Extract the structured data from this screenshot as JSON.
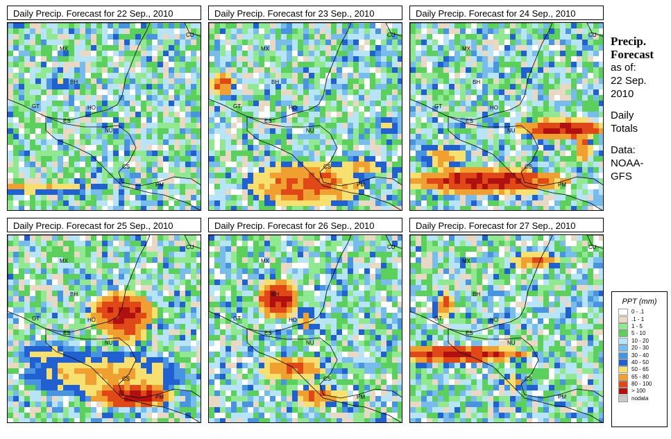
{
  "panels": [
    {
      "title": "Daily Precip. Forecast for  22 Sep., 2010",
      "seed": 1,
      "blobs": [
        [
          40,
          270,
          120,
          8,
          9
        ],
        [
          320,
          230,
          40,
          6,
          7
        ],
        [
          85,
          120,
          25,
          8,
          8
        ]
      ]
    },
    {
      "title": "Daily Precip. Forecast for  23 Sep., 2010",
      "seed": 2,
      "blobs": [
        [
          440,
          265,
          90,
          35,
          10
        ],
        [
          520,
          240,
          40,
          15,
          9
        ],
        [
          320,
          120,
          20,
          20,
          10
        ],
        [
          560,
          180,
          20,
          15,
          8
        ]
      ]
    },
    {
      "title": "Daily Precip. Forecast for  24 Sep., 2010",
      "seed": 3,
      "blobs": [
        [
          700,
          260,
          120,
          20,
          11
        ],
        [
          810,
          185,
          70,
          15,
          11
        ],
        [
          840,
          210,
          12,
          25,
          10
        ],
        [
          640,
          225,
          40,
          20,
          9
        ]
      ]
    },
    {
      "title": "Daily Precip. Forecast for  25 Sep., 2010",
      "seed": 4,
      "blobs": [
        [
          175,
          450,
          50,
          30,
          11
        ],
        [
          180,
          470,
          35,
          30,
          10
        ],
        [
          150,
          540,
          120,
          35,
          9
        ],
        [
          190,
          570,
          60,
          20,
          11
        ],
        [
          70,
          510,
          50,
          20,
          8
        ]
      ]
    },
    {
      "title": "Daily Precip. Forecast for  26 Sep., 2010",
      "seed": 5,
      "blobs": [
        [
          400,
          430,
          30,
          30,
          11
        ],
        [
          420,
          530,
          50,
          20,
          10
        ],
        [
          460,
          570,
          40,
          15,
          10
        ],
        [
          440,
          460,
          15,
          20,
          9
        ]
      ]
    },
    {
      "title": "Daily Precip. Forecast for  27 Sep., 2010",
      "seed": 6,
      "blobs": [
        [
          660,
          510,
          110,
          12,
          11
        ],
        [
          770,
          375,
          40,
          12,
          10
        ],
        [
          640,
          440,
          15,
          20,
          10
        ],
        [
          740,
          550,
          15,
          15,
          9
        ]
      ]
    }
  ],
  "map_labels": [
    "MX",
    "BH",
    "GT",
    "HO",
    "ES",
    "NU",
    "CS",
    "PM",
    "CU"
  ],
  "side": {
    "heading_line1": "Precip.",
    "heading_line2": "Forecast",
    "asof_line1": "as of:",
    "asof_line2": "22 Sep.",
    "asof_line3": "2010",
    "daily_line1": "Daily",
    "daily_line2": "Totals",
    "data_line1": "Data:",
    "data_line2": "NOAA-",
    "data_line3": "GFS"
  },
  "legend": {
    "title": "PPT (mm)",
    "items": [
      {
        "label": "0 - .1",
        "color": "#ffffff"
      },
      {
        "label": ".1 - 1",
        "color": "#e8d8c4"
      },
      {
        "label": "1 - 5",
        "color": "#90e890"
      },
      {
        "label": "5 - 10",
        "color": "#5cd05c"
      },
      {
        "label": "10 - 20",
        "color": "#b8e4f8"
      },
      {
        "label": "20 - 30",
        "color": "#78bcec"
      },
      {
        "label": "30 - 40",
        "color": "#4894e0"
      },
      {
        "label": "40 - 50",
        "color": "#2060d0"
      },
      {
        "label": "50 - 65",
        "color": "#f8e070"
      },
      {
        "label": "65 - 80",
        "color": "#f0a030"
      },
      {
        "label": "80 - 100",
        "color": "#e04818"
      },
      {
        "label": "> 100",
        "color": "#b01010"
      },
      {
        "label": "nodata",
        "color": "#c8c8c8"
      }
    ]
  }
}
